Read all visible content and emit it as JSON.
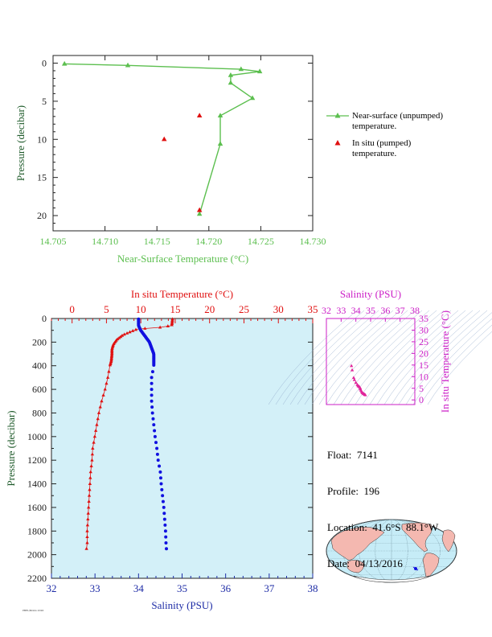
{
  "colors": {
    "green": "#5cbf4f",
    "red": "#e01010",
    "blue": "#1010e0",
    "magenta": "#cc1fc7",
    "navy": "#1e2ca6",
    "plot_bg": "#d3f0f8"
  },
  "icons": [
    "green-triangle-icon",
    "red-triangle-icon",
    "world-map-icon"
  ],
  "legend": {
    "near_surface": "Near-surface (unpumped)\ntemperature.",
    "in_situ": "In situ (pumped)\ntemperature."
  },
  "info": {
    "float": "Float:  7141",
    "profile": "Profile:  196",
    "location": "Location:  41.6°S  88.1°W",
    "date": "Date:  04/13/2016"
  },
  "footer": "PMEL/NOAA 2016",
  "chart_data": [
    {
      "type": "line",
      "name": "near-surface-temperature-chart",
      "xlabel": "Near-Surface Temperature (°C)",
      "ylabel": "Pressure (decibar)",
      "xlim": [
        14.705,
        14.73
      ],
      "ylim": [
        22,
        -1
      ],
      "xticks": [
        14.705,
        14.71,
        14.715,
        14.72,
        14.725,
        14.73
      ],
      "xticklabels": [
        "14.705",
        "14.710",
        "14.715",
        "14.720",
        "14.725",
        "14.730"
      ],
      "yticks": [
        0,
        5,
        10,
        15,
        20
      ],
      "series": [
        {
          "name": "Near-surface (unpumped) temperature.",
          "points": [
            [
              14.7061,
              0.1
            ],
            [
              14.7122,
              0.3
            ],
            [
              14.7231,
              0.8
            ],
            [
              14.7249,
              1.1
            ],
            [
              14.7221,
              1.6
            ],
            [
              14.7221,
              2.6
            ],
            [
              14.7242,
              4.6
            ],
            [
              14.7211,
              6.9
            ],
            [
              14.7211,
              10.6
            ],
            [
              14.7191,
              19.8
            ]
          ]
        },
        {
          "name": "In situ (pumped) temperature.",
          "points": [
            [
              14.7191,
              6.9
            ],
            [
              14.7157,
              10.0
            ],
            [
              14.7191,
              19.3
            ]
          ]
        }
      ]
    },
    {
      "type": "scatter",
      "name": "profile-chart",
      "xlabel": "Salinity (PSU)",
      "ylabel": "Pressure (decibar)",
      "x2label": "In situ Temperature (°C)",
      "xlim": [
        32,
        38
      ],
      "x2lim": [
        -3,
        35
      ],
      "ylim": [
        2200,
        0
      ],
      "xticks": [
        32,
        33,
        34,
        35,
        36,
        37,
        38
      ],
      "x2ticks": [
        0,
        5,
        10,
        15,
        20,
        25,
        30,
        35
      ],
      "yticks": [
        0,
        200,
        400,
        600,
        800,
        1000,
        1200,
        1400,
        1600,
        1800,
        2000,
        2200
      ],
      "temperature_profile": [
        [
          14.6,
          5
        ],
        [
          14.5,
          60
        ],
        [
          12.8,
          75
        ],
        [
          9.5,
          90
        ],
        [
          8.6,
          110
        ],
        [
          7.4,
          140
        ],
        [
          6.5,
          180
        ],
        [
          6.0,
          220
        ],
        [
          5.8,
          260
        ],
        [
          5.8,
          300
        ],
        [
          5.7,
          360
        ],
        [
          5.5,
          400
        ],
        [
          5.2,
          500
        ],
        [
          4.8,
          600
        ],
        [
          4.3,
          700
        ],
        [
          3.9,
          800
        ],
        [
          3.6,
          900
        ],
        [
          3.3,
          1000
        ],
        [
          3.0,
          1100
        ],
        [
          2.9,
          1200
        ],
        [
          2.7,
          1300
        ],
        [
          2.6,
          1400
        ],
        [
          2.5,
          1500
        ],
        [
          2.4,
          1600
        ],
        [
          2.3,
          1700
        ],
        [
          2.2,
          1800
        ],
        [
          2.2,
          1900
        ],
        [
          2.1,
          1950
        ]
      ],
      "salinity_profile": [
        [
          34.0,
          5
        ],
        [
          34.0,
          60
        ],
        [
          34.05,
          100
        ],
        [
          34.15,
          150
        ],
        [
          34.25,
          200
        ],
        [
          34.3,
          250
        ],
        [
          34.35,
          300
        ],
        [
          34.35,
          350
        ],
        [
          34.35,
          400
        ],
        [
          34.3,
          500
        ],
        [
          34.3,
          600
        ],
        [
          34.3,
          700
        ],
        [
          34.32,
          800
        ],
        [
          34.35,
          900
        ],
        [
          34.38,
          1000
        ],
        [
          34.42,
          1100
        ],
        [
          34.45,
          1200
        ],
        [
          34.5,
          1300
        ],
        [
          34.52,
          1400
        ],
        [
          34.55,
          1500
        ],
        [
          34.58,
          1600
        ],
        [
          34.6,
          1700
        ],
        [
          34.62,
          1800
        ],
        [
          34.63,
          1900
        ],
        [
          34.64,
          1950
        ]
      ]
    },
    {
      "type": "scatter",
      "name": "ts-diagram",
      "xlabel": "Salinity (PSU)",
      "ylabel": "In situ Temperature (°C)",
      "xlim": [
        32,
        38
      ],
      "ylim": [
        -2,
        35
      ],
      "xticks": [
        32,
        33,
        34,
        35,
        36,
        37,
        38
      ],
      "yticks": [
        0,
        5,
        10,
        15,
        20,
        25,
        30,
        35
      ],
      "points": [
        [
          33.7,
          14.6
        ],
        [
          33.75,
          12.8
        ],
        [
          33.85,
          9.5
        ],
        [
          33.9,
          8.6
        ],
        [
          34.0,
          7.4
        ],
        [
          34.1,
          6.5
        ],
        [
          34.15,
          6.0
        ],
        [
          34.2,
          5.8
        ],
        [
          34.25,
          5.5
        ],
        [
          34.3,
          5.0
        ],
        [
          34.3,
          4.6
        ],
        [
          34.35,
          4.0
        ],
        [
          34.4,
          3.4
        ],
        [
          34.45,
          3.0
        ],
        [
          34.5,
          2.7
        ],
        [
          34.55,
          2.5
        ],
        [
          34.6,
          2.3
        ],
        [
          34.64,
          2.1
        ]
      ]
    }
  ]
}
